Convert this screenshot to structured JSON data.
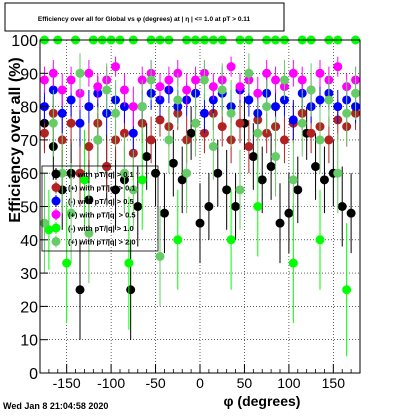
{
  "title": "Efficiency over all for Global vs φ (degrees) at | η | <= 1.0 at pT > 0.11",
  "timestamp": "Wed Jan  8 21:04:58 2020",
  "chart_data": {
    "type": "scatter",
    "title": "Efficiency over all for Global vs φ (degrees) at | η | <= 1.0 at pT > 0.11",
    "xlabel": "φ (degrees)",
    "ylabel": "Efficiency over all (%)",
    "xlim": [
      -180,
      180
    ],
    "ylim": [
      0,
      100
    ],
    "grid": true,
    "legend_position": "left",
    "x_ticks": [
      -150,
      -100,
      -50,
      0,
      50,
      100,
      150
    ],
    "y_ticks": [
      0,
      10,
      20,
      30,
      40,
      50,
      60,
      70,
      80,
      90,
      100
    ],
    "series": [
      {
        "name": "(-) with pT/|q| > 0.1",
        "color": "#000000",
        "x": [
          -175,
          -165,
          -155,
          -145,
          -135,
          -125,
          -115,
          -105,
          -95,
          -85,
          -78,
          -70,
          -60,
          -50,
          -40,
          -30,
          -20,
          -10,
          0,
          10,
          20,
          30,
          40,
          50,
          60,
          70,
          80,
          90,
          100,
          110,
          120,
          130,
          140,
          150,
          160,
          170
        ],
        "y": [
          75,
          68,
          55,
          60,
          25,
          52,
          70,
          62,
          55,
          58,
          25,
          50,
          65,
          60,
          48,
          63,
          58,
          72,
          45,
          50,
          60,
          55,
          50,
          75,
          65,
          58,
          62,
          45,
          48,
          55,
          72,
          62,
          58,
          60,
          50,
          48
        ],
        "err": [
          8,
          10,
          12,
          10,
          15,
          12,
          8,
          10,
          12,
          10,
          15,
          12,
          10,
          10,
          12,
          10,
          10,
          8,
          12,
          10,
          10,
          12,
          10,
          8,
          10,
          10,
          10,
          12,
          12,
          10,
          8,
          10,
          10,
          10,
          12,
          12
        ]
      },
      {
        "name": "(+) with pT/|q| > 0.1",
        "color": "#b22222",
        "x": [
          -175,
          -165,
          -155,
          -145,
          -135,
          -125,
          -115,
          -105,
          -95,
          -85,
          -75,
          -65,
          -55,
          -45,
          -35,
          -25,
          -15,
          -5,
          5,
          15,
          25,
          35,
          45,
          55,
          65,
          75,
          85,
          95,
          105,
          115,
          125,
          135,
          145,
          155,
          165,
          175
        ],
        "y": [
          72,
          78,
          70,
          75,
          60,
          68,
          75,
          62,
          70,
          72,
          66,
          75,
          70,
          76,
          74,
          78,
          70,
          75,
          72,
          78,
          74,
          70,
          75,
          68,
          76,
          72,
          74,
          70,
          75,
          78,
          72,
          74,
          70,
          76,
          74,
          78
        ],
        "err": [
          6,
          5,
          8,
          6,
          10,
          7,
          6,
          8,
          6,
          6,
          8,
          6,
          7,
          5,
          6,
          5,
          7,
          6,
          6,
          5,
          6,
          7,
          6,
          8,
          6,
          6,
          6,
          7,
          6,
          5,
          6,
          6,
          7,
          6,
          6,
          5
        ]
      },
      {
        "name": "(-) with pT/|q| > 0.5",
        "color": "#0000ff",
        "x": [
          -175,
          -165,
          -155,
          -145,
          -135,
          -125,
          -115,
          -105,
          -95,
          -85,
          -75,
          -65,
          -55,
          -45,
          -35,
          -25,
          -15,
          -5,
          5,
          15,
          25,
          35,
          45,
          55,
          65,
          75,
          85,
          95,
          105,
          115,
          125,
          135,
          145,
          155,
          165,
          175
        ],
        "y": [
          80,
          85,
          78,
          82,
          75,
          80,
          84,
          78,
          82,
          80,
          72,
          80,
          84,
          82,
          85,
          80,
          82,
          84,
          78,
          82,
          84,
          80,
          85,
          82,
          78,
          84,
          80,
          82,
          76,
          84,
          80,
          82,
          84,
          80,
          82,
          80
        ],
        "err": [
          5,
          5,
          6,
          5,
          7,
          5,
          5,
          6,
          5,
          5,
          7,
          5,
          5,
          5,
          4,
          5,
          5,
          5,
          6,
          5,
          5,
          5,
          4,
          5,
          6,
          5,
          5,
          5,
          6,
          5,
          5,
          5,
          5,
          5,
          5,
          5
        ]
      },
      {
        "name": "(+) with pT/|q| > 0.5",
        "color": "#ff00ff",
        "x": [
          -175,
          -165,
          -155,
          -145,
          -135,
          -125,
          -115,
          -105,
          -95,
          -85,
          -75,
          -65,
          -55,
          -45,
          -35,
          -25,
          -15,
          -5,
          5,
          15,
          25,
          35,
          45,
          55,
          65,
          75,
          85,
          95,
          105,
          115,
          125,
          135,
          145,
          155,
          165,
          175
        ],
        "y": [
          88,
          90,
          85,
          88,
          84,
          90,
          86,
          88,
          92,
          85,
          80,
          88,
          90,
          86,
          88,
          90,
          85,
          88,
          90,
          86,
          88,
          92,
          86,
          88,
          84,
          90,
          88,
          86,
          90,
          88,
          85,
          90,
          88,
          92,
          86,
          88
        ],
        "err": [
          4,
          4,
          5,
          4,
          5,
          4,
          4,
          4,
          3,
          5,
          6,
          4,
          4,
          4,
          4,
          4,
          5,
          4,
          4,
          4,
          4,
          3,
          4,
          4,
          5,
          4,
          4,
          4,
          4,
          4,
          5,
          4,
          4,
          3,
          4,
          4
        ]
      },
      {
        "name": "(-) with pT/|q| > 1.0",
        "color": "#00ff00",
        "x": [
          -175,
          -170,
          -160,
          -150,
          -140,
          -130,
          -120,
          -110,
          -100,
          -90,
          -80,
          -75,
          -65,
          -55,
          -45,
          -35,
          -25,
          -15,
          -5,
          5,
          15,
          25,
          35,
          45,
          55,
          65,
          75,
          85,
          95,
          105,
          115,
          125,
          135,
          145,
          155,
          165,
          175
        ],
        "y": [
          100,
          43,
          100,
          33,
          100,
          58,
          100,
          100,
          100,
          100,
          33,
          100,
          58,
          100,
          100,
          100,
          40,
          100,
          100,
          100,
          100,
          100,
          40,
          100,
          100,
          50,
          100,
          100,
          100,
          33,
          100,
          100,
          40,
          100,
          100,
          25,
          100
        ],
        "err": [
          0,
          12,
          0,
          18,
          0,
          15,
          0,
          0,
          0,
          0,
          20,
          0,
          15,
          0,
          0,
          0,
          15,
          0,
          0,
          0,
          0,
          0,
          15,
          0,
          0,
          15,
          0,
          0,
          0,
          18,
          0,
          0,
          15,
          0,
          0,
          20,
          0
        ]
      },
      {
        "name": "(+) with pT/|q| > 2.0",
        "color": "#66cc66",
        "x": [
          -175,
          -165,
          -155,
          -145,
          -135,
          -125,
          -115,
          -105,
          -95,
          -85,
          -75,
          -65,
          -55,
          -45,
          -35,
          -25,
          -15,
          -5,
          5,
          15,
          25,
          35,
          45,
          55,
          65,
          75,
          85,
          95,
          105,
          115,
          125,
          135,
          145,
          155,
          165,
          175
        ],
        "y": [
          45,
          75,
          60,
          48,
          90,
          42,
          70,
          85,
          78,
          60,
          55,
          80,
          88,
          35,
          70,
          82,
          60,
          75,
          88,
          68,
          85,
          78,
          55,
          90,
          72,
          80,
          65,
          88,
          58,
          75,
          85,
          70,
          82,
          60,
          78,
          84
        ],
        "err": [
          15,
          10,
          12,
          15,
          6,
          15,
          10,
          8,
          10,
          12,
          12,
          8,
          6,
          15,
          10,
          8,
          12,
          10,
          6,
          10,
          8,
          10,
          12,
          6,
          10,
          8,
          12,
          6,
          12,
          10,
          8,
          10,
          8,
          12,
          10,
          8
        ]
      }
    ]
  }
}
